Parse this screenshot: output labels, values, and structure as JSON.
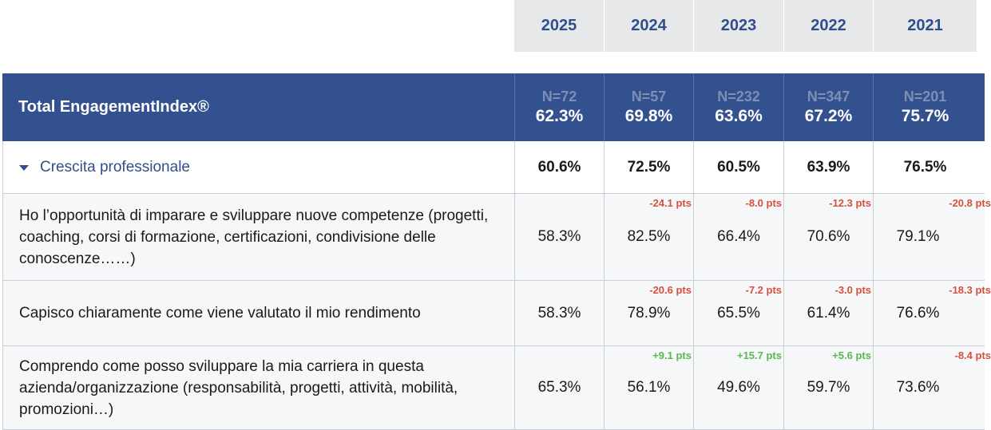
{
  "years": [
    "2025",
    "2024",
    "2023",
    "2022",
    "2021"
  ],
  "header": {
    "label": "Total EngagementIndex®",
    "cells": [
      {
        "n": "N=72",
        "pct": "62.3%"
      },
      {
        "n": "N=57",
        "pct": "69.8%"
      },
      {
        "n": "N=232",
        "pct": "63.6%"
      },
      {
        "n": "N=347",
        "pct": "67.2%"
      },
      {
        "n": "N=201",
        "pct": "75.7%"
      }
    ]
  },
  "section": {
    "label": "Crescita professionale",
    "values": [
      "60.6%",
      "72.5%",
      "60.5%",
      "63.9%",
      "76.5%"
    ]
  },
  "items": [
    {
      "label": "Ho l’opportunità di imparare e sviluppare nuove competenze (progetti, coaching, corsi di formazione, certificazioni, condivisione delle conoscenze……)",
      "values": [
        "58.3%",
        "82.5%",
        "66.4%",
        "70.6%",
        "79.1%"
      ],
      "deltas": [
        "",
        "-24.1 pts",
        "-8.0 pts",
        "-12.3 pts",
        "-20.8 pts"
      ]
    },
    {
      "label": "Capisco chiaramente come viene valutato il mio rendimento",
      "values": [
        "58.3%",
        "78.9%",
        "65.5%",
        "61.4%",
        "76.6%"
      ],
      "deltas": [
        "",
        "-20.6 pts",
        "-7.2 pts",
        "-3.0 pts",
        "-18.3 pts"
      ]
    },
    {
      "label": "Comprendo come posso sviluppare la mia carriera in questa azienda/organizzazione (responsabilità, progetti, attività, mobilità, promozioni…)",
      "values": [
        "65.3%",
        "56.1%",
        "49.6%",
        "59.7%",
        "73.6%"
      ],
      "deltas": [
        "",
        "+9.1 pts",
        "+15.7 pts",
        "+5.6 pts",
        "-8.4 pts"
      ]
    }
  ],
  "colors": {
    "header_bg": "#33508f",
    "accent": "#2f4f8c",
    "negative": "#d6503f",
    "positive": "#59b94f"
  }
}
